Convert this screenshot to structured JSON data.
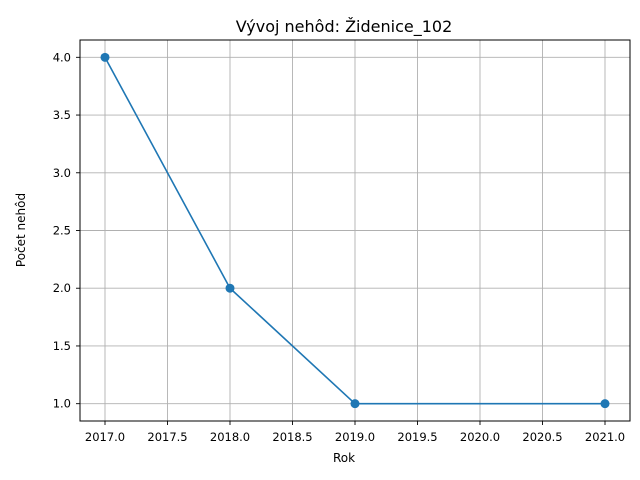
{
  "chart_data": {
    "type": "line",
    "title": "Vývoj nehôd: Židenice_102",
    "xlabel": "Rok",
    "ylabel": "Počet nehôd",
    "x": [
      2017,
      2018,
      2019,
      2021
    ],
    "series": [
      {
        "values": [
          4,
          2,
          1,
          1
        ]
      }
    ],
    "xlim": [
      2016.8,
      2021.2
    ],
    "ylim": [
      0.85,
      4.15
    ],
    "x_ticks": [
      "2017.0",
      "2017.5",
      "2018.0",
      "2018.5",
      "2019.0",
      "2019.5",
      "2020.0",
      "2020.5",
      "2021.0"
    ],
    "y_ticks": [
      "1.0",
      "1.5",
      "2.0",
      "2.5",
      "3.0",
      "3.5",
      "4.0"
    ],
    "grid": true,
    "line_color": "#1f77b4",
    "marker": "circle"
  }
}
